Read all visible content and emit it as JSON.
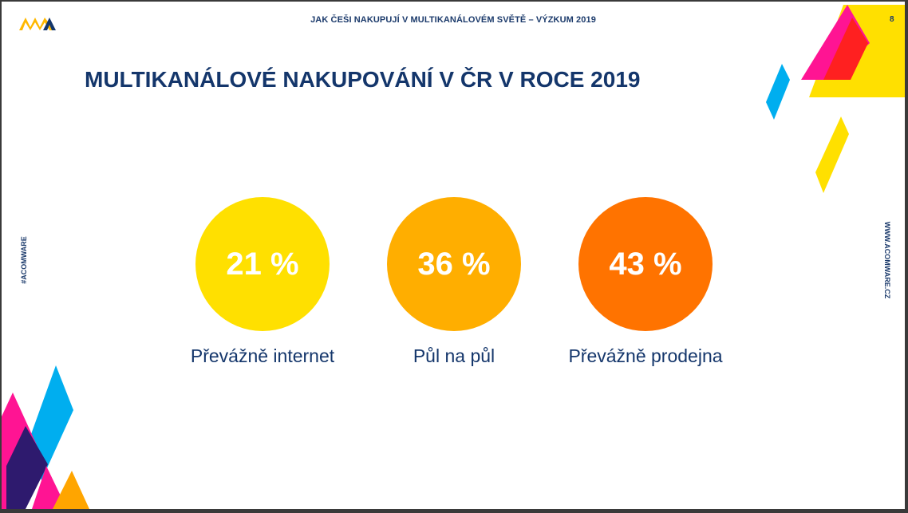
{
  "header": {
    "title": "JAK ČEŠI NAKUPUJÍ V MULTIKANÁLOVÉM SVĚTĚ – VÝZKUM 2019",
    "page_number": "8"
  },
  "main": {
    "title": "MULTIKANÁLOVÉ NAKUPOVÁNÍ V ČR V ROCE 2019"
  },
  "side": {
    "left_text": "#ACOMWARE",
    "right_text": "WWW.ACOMWARE.CZ"
  },
  "stats": [
    {
      "value": "21 %",
      "label": "Převážně internet",
      "color": "#FFE000"
    },
    {
      "value": "36 %",
      "label": "Půl na půl",
      "color": "#FFAE00"
    },
    {
      "value": "43 %",
      "label": "Převážně prodejna",
      "color": "#FF7300"
    }
  ],
  "colors": {
    "navy": "#14366B",
    "yellow": "#FFE000",
    "magenta": "#FF0080",
    "red": "#FF2020",
    "cyan": "#00AEEF",
    "purple": "#2E1A6E",
    "orange": "#FFA500"
  },
  "icons": {
    "logo": "acomware-logo-icon"
  }
}
